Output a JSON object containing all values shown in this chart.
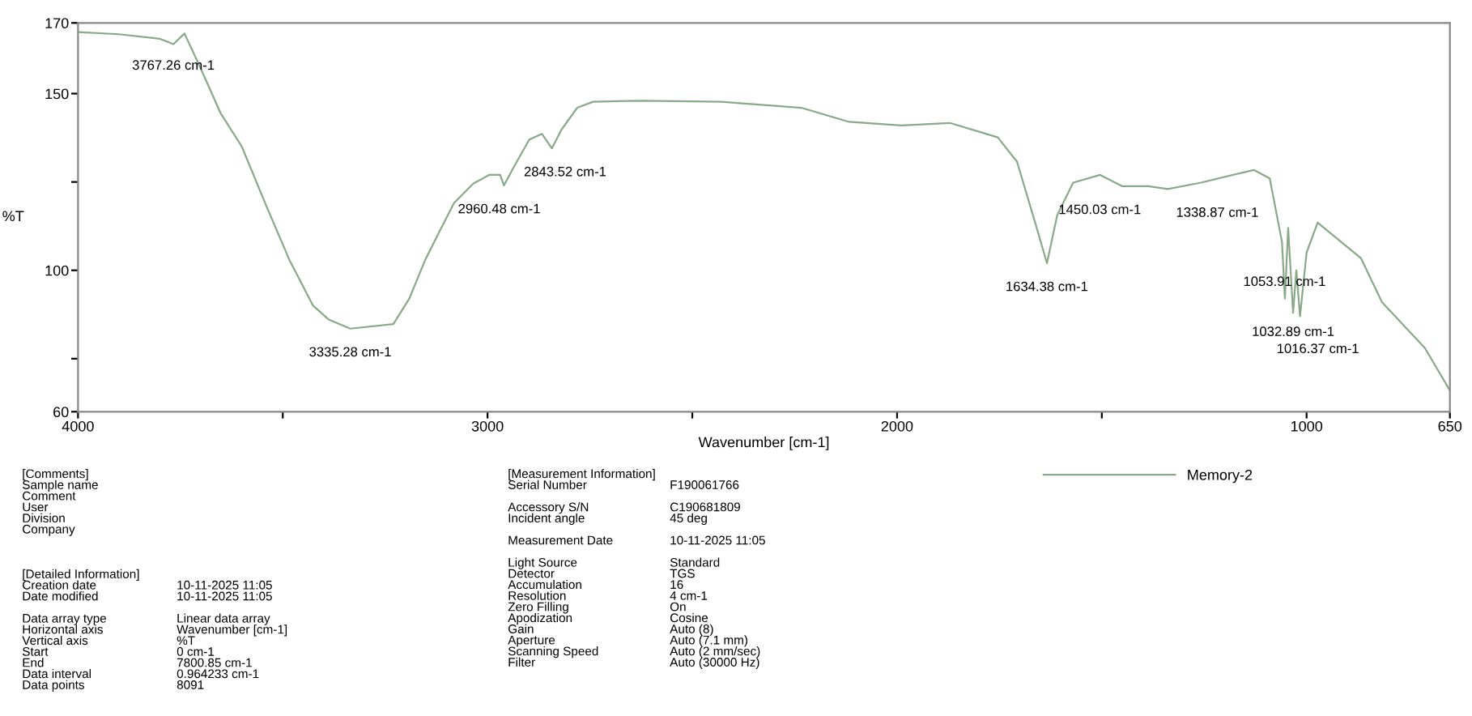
{
  "chart_data": {
    "type": "line",
    "xlabel": "Wavenumber [cm-1]",
    "ylabel": "%T",
    "xlim": [
      4000,
      650
    ],
    "ylim": [
      60,
      170
    ],
    "xticks": [
      4000,
      {
        "value": 3500,
        "label": null
      },
      3000,
      {
        "value": 2500,
        "label": null
      },
      2000,
      {
        "value": 1500,
        "label": null
      },
      1000,
      650
    ],
    "yticks": [
      60,
      {
        "value": 75,
        "label": null
      },
      100,
      {
        "value": 125,
        "label": null
      },
      150,
      170
    ],
    "grid": false,
    "legend": "bottom right",
    "line_style": "solid",
    "marker": "none",
    "series": [
      {
        "name": "Memory-2",
        "color": "#8aa88a",
        "x": [
          4000,
          3900,
          3800,
          3767,
          3740,
          3700,
          3652,
          3600,
          3543,
          3484,
          3426,
          3387,
          3335,
          3230,
          3191,
          3152,
          3113,
          3082,
          3035,
          2996,
          2969,
          2960,
          2937,
          2898,
          2867,
          2843,
          2820,
          2781,
          2742,
          2625,
          2430,
          2234,
          2117,
          1990,
          1871,
          1754,
          1707,
          1660,
          1634,
          1609,
          1570,
          1504,
          1450,
          1387,
          1339,
          1258,
          1129,
          1090,
          1060,
          1053,
          1045,
          1033,
          1025,
          1016,
          1000,
          973,
          867,
          816,
          711,
          650
        ],
        "values": [
          167.4,
          166.8,
          165.5,
          164,
          167,
          157,
          144.5,
          135,
          119,
          103,
          90,
          86,
          83.5,
          84.8,
          92,
          103,
          112,
          119,
          124.5,
          127,
          127,
          124,
          129,
          137,
          138.6,
          134.5,
          139.7,
          146,
          147.7,
          148,
          147.7,
          146,
          142,
          141,
          141.7,
          137.6,
          130.7,
          112.4,
          102,
          115.6,
          124.8,
          127,
          123.8,
          123.8,
          123,
          124.8,
          128.4,
          126,
          108,
          92,
          112,
          88,
          100,
          87,
          105,
          113.5,
          103.4,
          91,
          78,
          66
        ]
      }
    ],
    "annotations": [
      {
        "text": "3767.26 cm-1",
        "x": 3767.26,
        "y": 164
      },
      {
        "text": "3335.28 cm-1",
        "x": 3335.28,
        "y": 83.5
      },
      {
        "text": "2960.48 cm-1",
        "x": 2960.48,
        "y": 124
      },
      {
        "text": "2843.52 cm-1",
        "x": 2843.52,
        "y": 134.5
      },
      {
        "text": "1634.38 cm-1",
        "x": 1634.38,
        "y": 102
      },
      {
        "text": "1450.03 cm-1",
        "x": 1450.03,
        "y": 123.8
      },
      {
        "text": "1338.87 cm-1",
        "x": 1338.87,
        "y": 123
      },
      {
        "text": "1053.91 cm-1",
        "x": 1053.91,
        "y": 92
      },
      {
        "text": "1032.89 cm-1",
        "x": 1032.89,
        "y": 88
      },
      {
        "text": "1016.37 cm-1",
        "x": 1016.37,
        "y": 87
      },
      "[Comments]\nSample name\nComment\nUser\nDivision\nCompany",
      "[Detailed Information]\nCreation date\nDate modified\n\nData array type\nHorizontal axis\nVertical axis\nStart\nEnd\nData interval\nData points",
      "\n10-11-2025 11:05\n10-11-2025 11:05\n\nLinear data array\nWavenumber [cm-1]\n%T\n0 cm-1\n7800.85 cm-1\n0.964233 cm-1\n8091",
      "[Measurement Information]\nSerial Number\n\nAccessory S/N\nIncident angle\n\nMeasurement Date\n\nLight Source\nDetector\nAccumulation\nResolution\nZero Filling\nApodization\nGain\nAperture\nScanning Speed\nFilter",
      "\nF190061766\n\nC190681809\n45 deg\n\n10-11-2025 11:05\n\nStandard\nTGS\n16\n4 cm-1\nOn\nCosine\nAuto (8)\nAuto (7.1 mm)\nAuto (2 mm/sec)\nAuto (30000 Hz)"
    ]
  }
}
